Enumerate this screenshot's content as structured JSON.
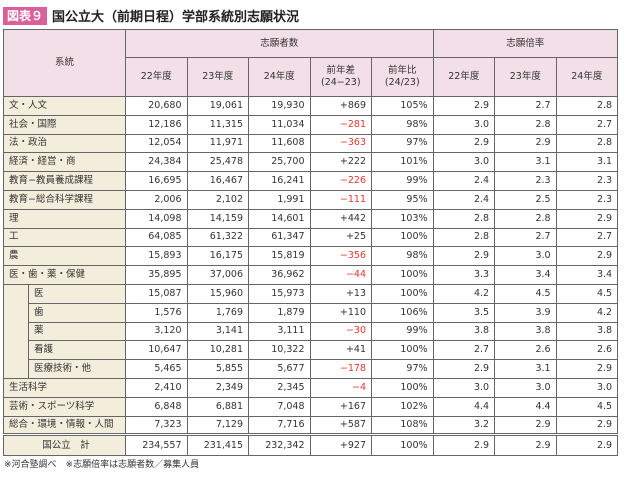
{
  "title": {
    "badge": "図表９",
    "text": "国公立大（前期日程）学部系統別志願状況"
  },
  "headers": {
    "category": "系統",
    "applicants": "志願者数",
    "ratio": "志願倍率",
    "cols": [
      "22年度",
      "23年度",
      "24年度",
      "前年差\n(24−23)",
      "前年比\n(24/23)",
      "22年度",
      "23年度",
      "24年度"
    ]
  },
  "rows": [
    {
      "label": "文・人文",
      "sub": false,
      "values": [
        "20,680",
        "19,061",
        "19,930",
        "+869",
        "105%",
        "2.9",
        "2.7",
        "2.8"
      ]
    },
    {
      "label": "社会・国際",
      "sub": false,
      "values": [
        "12,186",
        "11,315",
        "11,034",
        "−281",
        "98%",
        "3.0",
        "2.8",
        "2.7"
      ]
    },
    {
      "label": "法・政治",
      "sub": false,
      "values": [
        "12,054",
        "11,971",
        "11,608",
        "−363",
        "97%",
        "2.9",
        "2.9",
        "2.8"
      ]
    },
    {
      "label": "経済・経営・商",
      "sub": false,
      "values": [
        "24,384",
        "25,478",
        "25,700",
        "+222",
        "101%",
        "3.0",
        "3.1",
        "3.1"
      ]
    },
    {
      "label": "教育−教員養成課程",
      "sub": false,
      "values": [
        "16,695",
        "16,467",
        "16,241",
        "−226",
        "99%",
        "2.4",
        "2.3",
        "2.3"
      ]
    },
    {
      "label": "教育−総合科学課程",
      "sub": false,
      "values": [
        "2,006",
        "2,102",
        "1,991",
        "−111",
        "95%",
        "2.4",
        "2.5",
        "2.3"
      ]
    },
    {
      "label": "理",
      "sub": false,
      "values": [
        "14,098",
        "14,159",
        "14,601",
        "+442",
        "103%",
        "2.8",
        "2.8",
        "2.9"
      ]
    },
    {
      "label": "工",
      "sub": false,
      "values": [
        "64,085",
        "61,322",
        "61,347",
        "+25",
        "100%",
        "2.8",
        "2.7",
        "2.7"
      ]
    },
    {
      "label": "農",
      "sub": false,
      "values": [
        "15,893",
        "16,175",
        "15,819",
        "−356",
        "98%",
        "2.9",
        "3.0",
        "2.9"
      ]
    },
    {
      "label": "医・歯・薬・保健",
      "sub": false,
      "values": [
        "35,895",
        "37,006",
        "36,962",
        "−44",
        "100%",
        "3.3",
        "3.4",
        "3.4"
      ]
    },
    {
      "label": "医",
      "sub": true,
      "values": [
        "15,087",
        "15,960",
        "15,973",
        "+13",
        "100%",
        "4.2",
        "4.5",
        "4.5"
      ]
    },
    {
      "label": "歯",
      "sub": true,
      "values": [
        "1,576",
        "1,769",
        "1,879",
        "+110",
        "106%",
        "3.5",
        "3.9",
        "4.2"
      ]
    },
    {
      "label": "薬",
      "sub": true,
      "values": [
        "3,120",
        "3,141",
        "3,111",
        "−30",
        "99%",
        "3.8",
        "3.8",
        "3.8"
      ]
    },
    {
      "label": "看護",
      "sub": true,
      "values": [
        "10,647",
        "10,281",
        "10,322",
        "+41",
        "100%",
        "2.7",
        "2.6",
        "2.6"
      ]
    },
    {
      "label": "医療技術・他",
      "sub": true,
      "values": [
        "5,465",
        "5,855",
        "5,677",
        "−178",
        "97%",
        "2.9",
        "3.1",
        "2.9"
      ]
    },
    {
      "label": "生活科学",
      "sub": false,
      "values": [
        "2,410",
        "2,349",
        "2,345",
        "−4",
        "100%",
        "3.0",
        "3.0",
        "3.0"
      ]
    },
    {
      "label": "芸術・スポーツ科学",
      "sub": false,
      "values": [
        "6,848",
        "6,881",
        "7,048",
        "+167",
        "102%",
        "4.4",
        "4.4",
        "4.5"
      ]
    },
    {
      "label": "総合・環境・情報・人間",
      "sub": false,
      "values": [
        "7,323",
        "7,129",
        "7,716",
        "+587",
        "108%",
        "3.2",
        "2.9",
        "2.9"
      ]
    }
  ],
  "total": {
    "label": "国公立　計",
    "values": [
      "234,557",
      "231,415",
      "232,342",
      "+927",
      "100%",
      "2.9",
      "2.9",
      "2.9"
    ]
  },
  "footnote": "※河合塾調べ　※志願倍率は志願者数／募集人員",
  "colors": {
    "badge": "#d9609a",
    "header_bg": "#f3dfe7",
    "category_bg": "#f3eedb",
    "negative": "#e8352e"
  }
}
